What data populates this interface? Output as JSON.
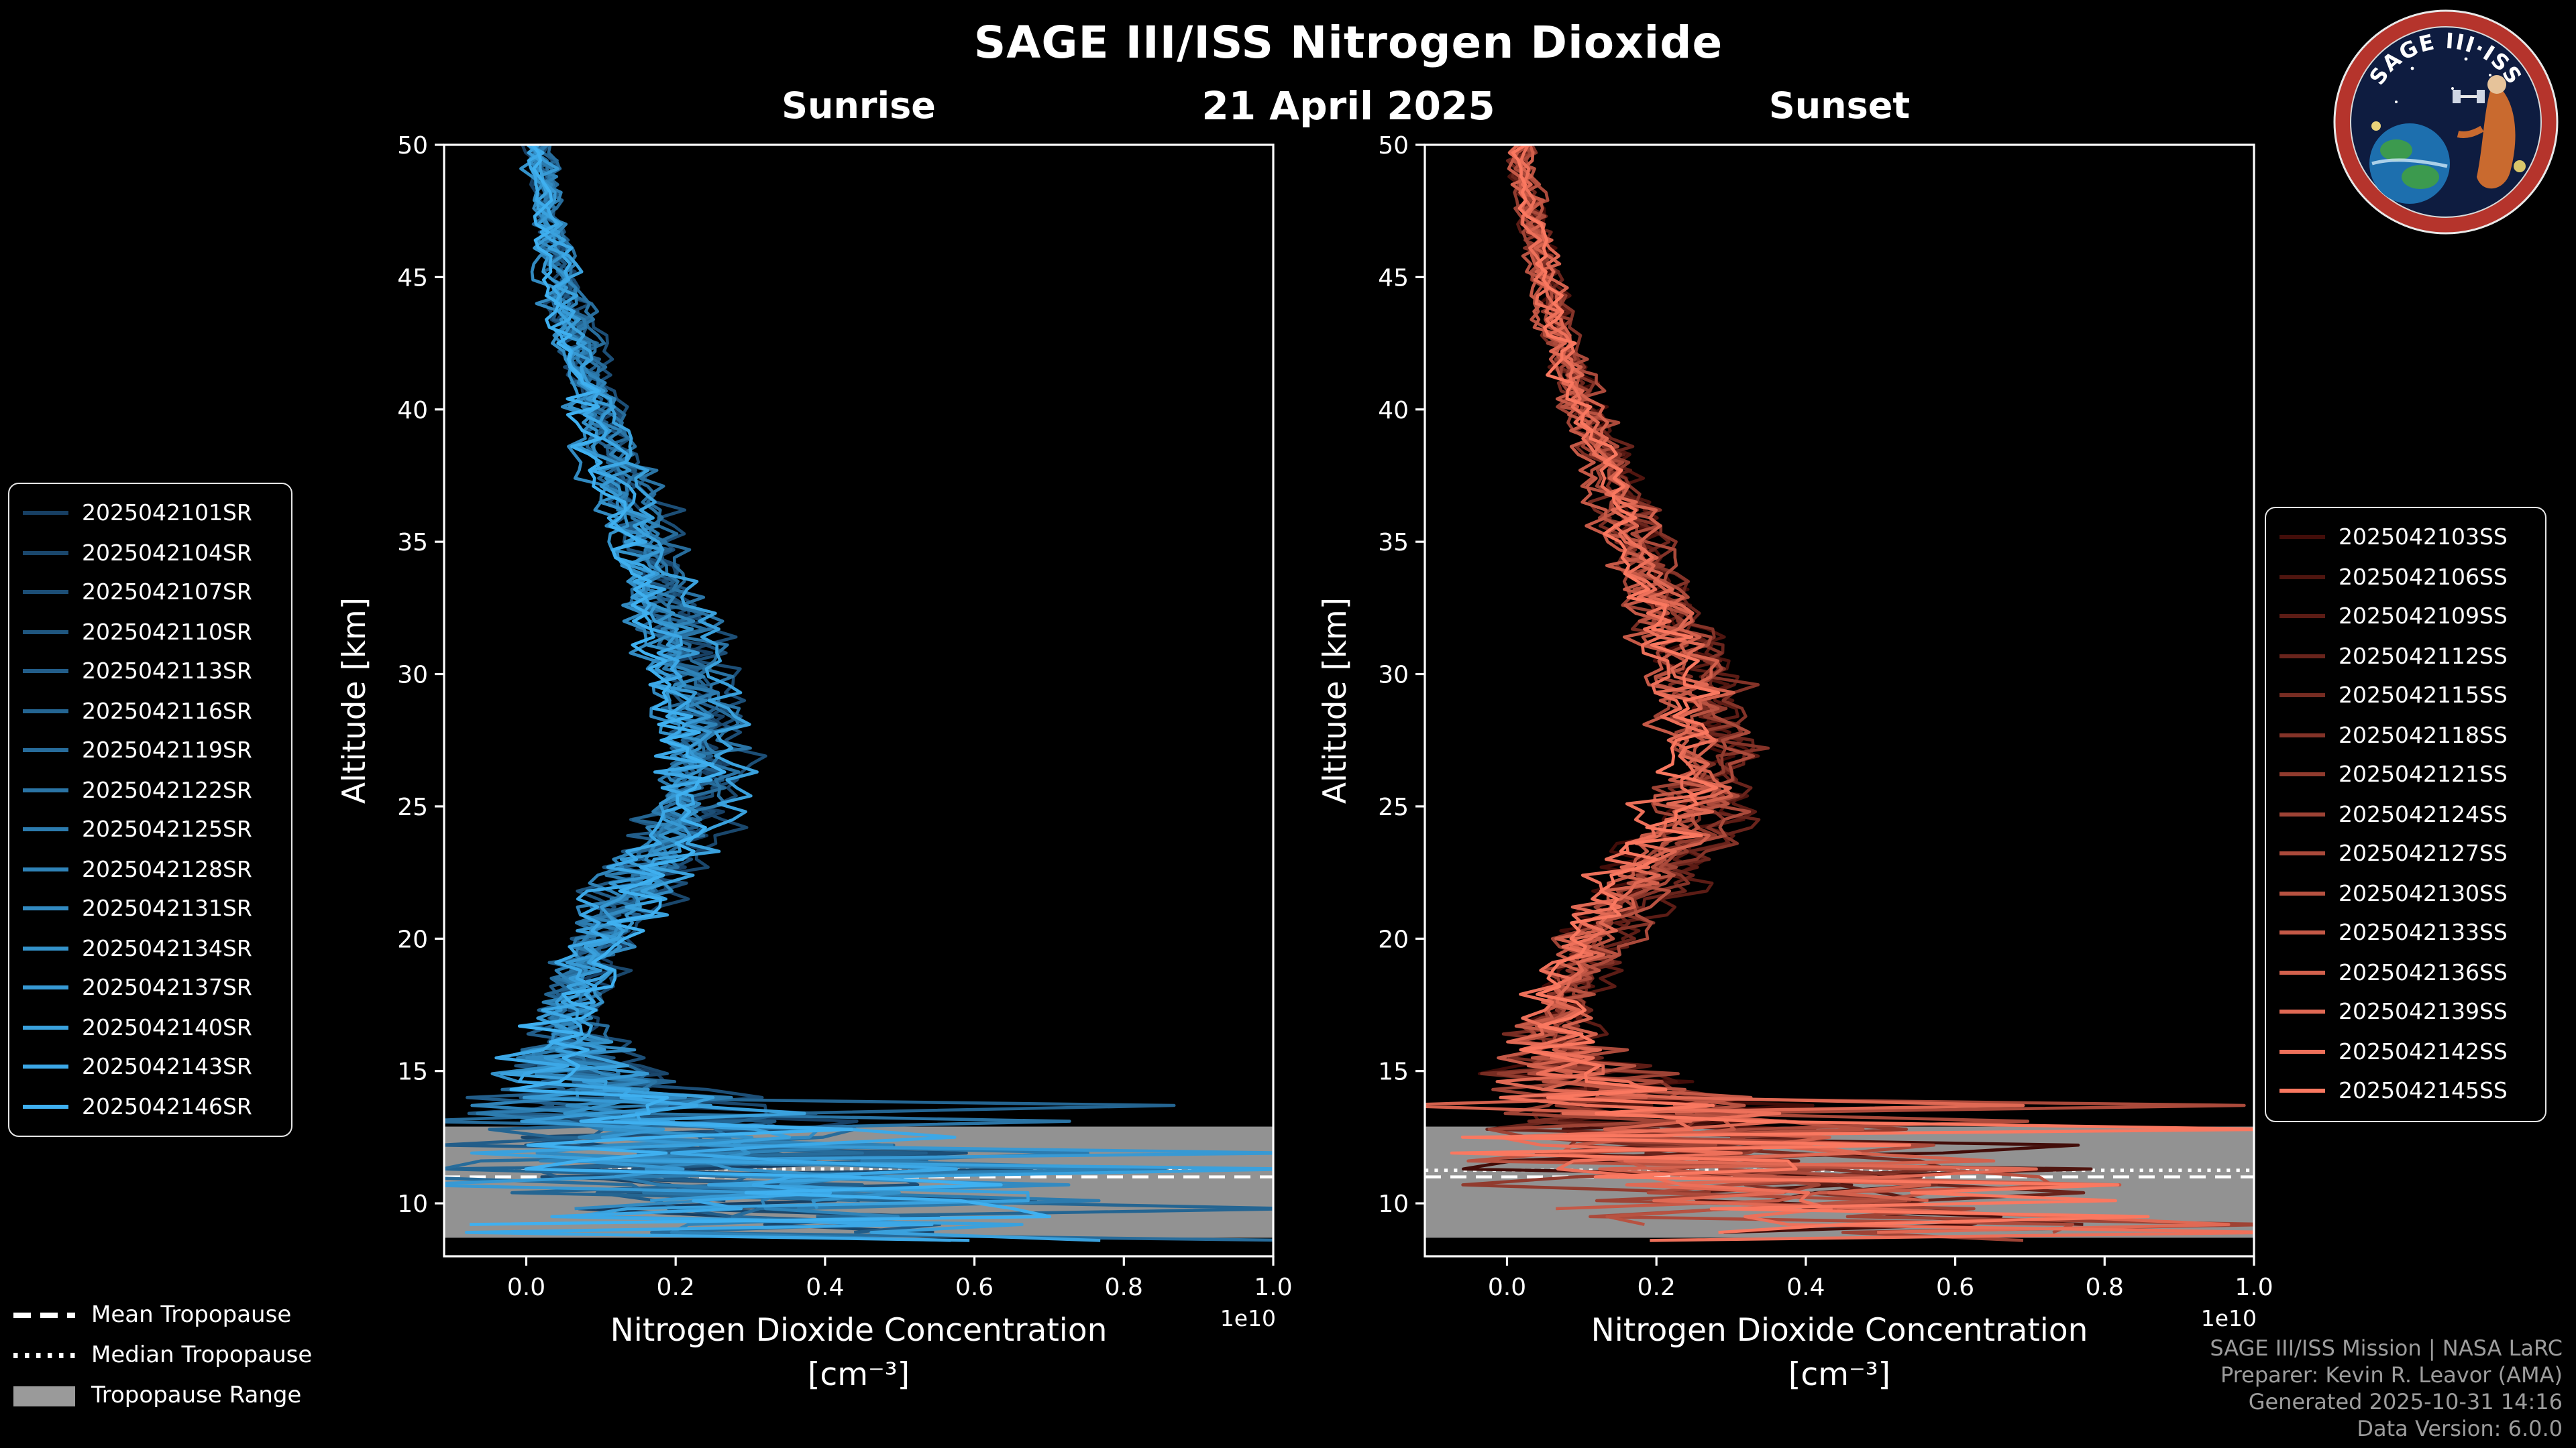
{
  "header": {
    "title": "SAGE III/ISS Nitrogen Dioxide",
    "date": "21 April 2025"
  },
  "footer": {
    "lines": [
      "SAGE III/ISS Mission | NASA LaRC",
      "Preparer: Kevin R. Leavor (AMA)",
      "Generated 2025-10-31 14:16",
      "Data Version: 6.0.0"
    ]
  },
  "logo": {
    "title": "SAGE III·ISS",
    "ring_color": "#b5342c",
    "field_color": "#0e1c40"
  },
  "chart_data": {
    "type": "line",
    "title": "SAGE III/ISS Nitrogen Dioxide",
    "subtitle": "21 April 2025",
    "xlabel_line1": "Nitrogen Dioxide Concentration",
    "xlabel_line2": "[cm⁻³]",
    "x_offset_label": "1e10",
    "ylabel": "Altitude [km]",
    "xlim": [
      -0.11,
      1.0
    ],
    "ylim": [
      8,
      50
    ],
    "x_ticks": [
      "0.0",
      "0.2",
      "0.4",
      "0.6",
      "0.8",
      "1.0"
    ],
    "y_ticks": [
      50,
      45,
      40,
      35,
      30,
      25,
      20,
      15,
      10
    ],
    "grid": false,
    "background": "#000000",
    "mean_profile": {
      "altitude_km": [
        50,
        47,
        44,
        41,
        38,
        35,
        33,
        31,
        29,
        27,
        25,
        23,
        21,
        19,
        17.5,
        16.5,
        15.5,
        14.5,
        13.5,
        12.5,
        11.5,
        10.5,
        9.5,
        8.5,
        8
      ],
      "concentration_1e10": [
        0.015,
        0.03,
        0.05,
        0.08,
        0.115,
        0.155,
        0.18,
        0.205,
        0.225,
        0.24,
        0.23,
        0.185,
        0.13,
        0.085,
        0.06,
        0.055,
        0.07,
        0.1,
        0.16,
        0.22,
        0.27,
        0.32,
        0.37,
        0.41,
        0.43
      ],
      "noise_sigma_1e10": [
        0.012,
        0.013,
        0.015,
        0.018,
        0.02,
        0.022,
        0.025,
        0.028,
        0.031,
        0.033,
        0.034,
        0.033,
        0.03,
        0.028,
        0.028,
        0.04,
        0.07,
        0.11,
        0.17,
        0.22,
        0.26,
        0.28,
        0.3,
        0.3,
        0.3
      ]
    },
    "legend_overlays": [
      {
        "label": "Mean Tropopause",
        "style": "dashed"
      },
      {
        "label": "Median Tropopause",
        "style": "dotted"
      },
      {
        "label": "Tropopause Range",
        "style": "band"
      }
    ],
    "panels": [
      {
        "id": "sunrise",
        "title": "Sunrise",
        "color_start": "#173f63",
        "color_end": "#3fb0f0",
        "amplitude": 1.0,
        "tropopause": {
          "mean_km": 11.0,
          "median_km": 11.3,
          "range_km": [
            8.7,
            12.9
          ]
        },
        "series": [
          {
            "label": "2025042101SR",
            "seed": 311
          },
          {
            "label": "2025042104SR",
            "seed": 472
          },
          {
            "label": "2025042107SR",
            "seed": 533
          },
          {
            "label": "2025042110SR",
            "seed": 94
          },
          {
            "label": "2025042113SR",
            "seed": 655
          },
          {
            "label": "2025042116SR",
            "seed": 216
          },
          {
            "label": "2025042119SR",
            "seed": 777
          },
          {
            "label": "2025042122SR",
            "seed": 838
          },
          {
            "label": "2025042125SR",
            "seed": 399
          },
          {
            "label": "2025042128SR",
            "seed": 960
          },
          {
            "label": "2025042131SR",
            "seed": 121
          },
          {
            "label": "2025042134SR",
            "seed": 582
          },
          {
            "label": "2025042137SR",
            "seed": 243
          },
          {
            "label": "2025042140SR",
            "seed": 804
          },
          {
            "label": "2025042143SR",
            "seed": 465
          },
          {
            "label": "2025042146SR",
            "seed": 926
          }
        ]
      },
      {
        "id": "sunset",
        "title": "Sunset",
        "color_start": "#420d09",
        "color_end": "#fa7860",
        "amplitude": 1.12,
        "tropopause": {
          "mean_km": 11.0,
          "median_km": 11.25,
          "range_km": [
            8.7,
            12.9
          ]
        },
        "series": [
          {
            "label": "2025042103SS",
            "seed": 147
          },
          {
            "label": "2025042106SS",
            "seed": 258
          },
          {
            "label": "2025042109SS",
            "seed": 369
          },
          {
            "label": "2025042112SS",
            "seed": 470
          },
          {
            "label": "2025042115SS",
            "seed": 581
          },
          {
            "label": "2025042118SS",
            "seed": 692
          },
          {
            "label": "2025042121SS",
            "seed": 703
          },
          {
            "label": "2025042124SS",
            "seed": 814
          },
          {
            "label": "2025042127SS",
            "seed": 925
          },
          {
            "label": "2025042130SS",
            "seed": 136
          },
          {
            "label": "2025042133SS",
            "seed": 247
          },
          {
            "label": "2025042136SS",
            "seed": 358
          },
          {
            "label": "2025042139SS",
            "seed": 469
          },
          {
            "label": "2025042142SS",
            "seed": 570
          },
          {
            "label": "2025042145SS",
            "seed": 681
          }
        ]
      }
    ]
  }
}
